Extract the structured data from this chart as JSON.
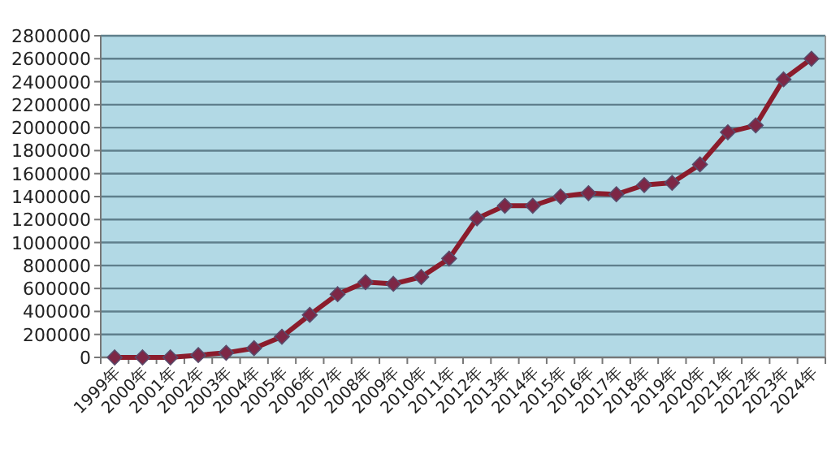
{
  "chart_data": {
    "type": "line",
    "categories": [
      "1999年",
      "2000年",
      "2001年",
      "2002年",
      "2003年",
      "2004年",
      "2005年",
      "2006年",
      "2007年",
      "2008年",
      "2009年",
      "2010年",
      "2011年",
      "2012年",
      "2013年",
      "2014年",
      "2015年",
      "2016年",
      "2017年",
      "2018年",
      "2019年",
      "2020年",
      "2021年",
      "2022年",
      "2023年",
      "2024年"
    ],
    "series": [
      {
        "color": "#8b1c2c",
        "values": [
          0,
          0,
          0,
          20000,
          40000,
          80000,
          180000,
          370000,
          550000,
          655000,
          640000,
          700000,
          860000,
          1210000,
          1320000,
          1320000,
          1400000,
          1430000,
          1420000,
          1500000,
          1520000,
          1680000,
          1960000,
          2020000,
          2420000,
          2600000
        ]
      }
    ],
    "ylim": [
      0,
      2800000
    ],
    "yticks": [
      0,
      200000,
      400000,
      600000,
      800000,
      1000000,
      1200000,
      1400000,
      1600000,
      1800000,
      2000000,
      2200000,
      2400000,
      2600000,
      2800000
    ],
    "grid": "y",
    "marker": "diamond",
    "line_style": "solid"
  }
}
